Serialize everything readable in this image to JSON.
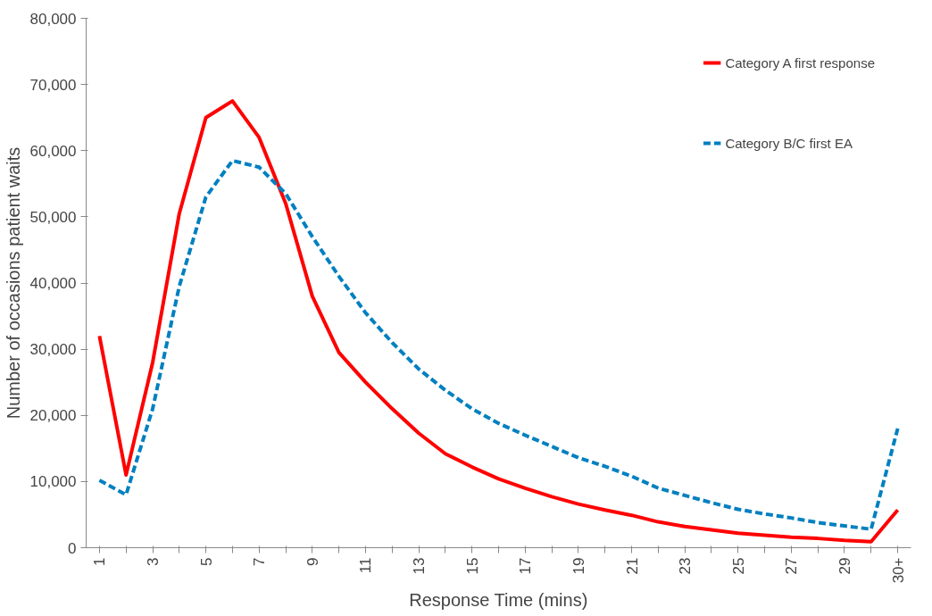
{
  "chart_data": {
    "type": "line",
    "xlabel": "Response Time (mins)",
    "ylabel": "Number of occasions patient waits",
    "categories": [
      "1",
      null,
      "3",
      null,
      "5",
      null,
      "7",
      null,
      "9",
      null,
      "11",
      null,
      "13",
      null,
      "15",
      null,
      "17",
      null,
      "19",
      null,
      "21",
      null,
      "23",
      null,
      "25",
      null,
      "27",
      null,
      "29",
      null,
      "30+"
    ],
    "series": [
      {
        "name": "Category A first response",
        "color": "#ff0000",
        "line_style": "solid",
        "values": [
          32000,
          11000,
          28000,
          50500,
          65000,
          67500,
          62000,
          52000,
          38000,
          29500,
          25000,
          21000,
          17300,
          14200,
          12200,
          10400,
          9000,
          7700,
          6600,
          5700,
          4900,
          3900,
          3200,
          2700,
          2200,
          1900,
          1600,
          1400,
          1100,
          900,
          5700
        ]
      },
      {
        "name": "Category B/C first EA",
        "color": "#0080c0",
        "line_style": "dashed",
        "values": [
          10200,
          8000,
          21000,
          39500,
          53000,
          58500,
          57500,
          53500,
          47000,
          41000,
          35500,
          31000,
          27000,
          23800,
          21000,
          18800,
          17000,
          15300,
          13600,
          12300,
          10800,
          9000,
          7900,
          6800,
          5800,
          5100,
          4500,
          3800,
          3300,
          2800,
          18000
        ]
      }
    ],
    "ylim": [
      0,
      80000
    ],
    "yticks": [
      {
        "value": 0,
        "label": "0"
      },
      {
        "value": 10000,
        "label": "10,000"
      },
      {
        "value": 20000,
        "label": "20,000"
      },
      {
        "value": 30000,
        "label": "30,000"
      },
      {
        "value": 40000,
        "label": "40,000"
      },
      {
        "value": 50000,
        "label": "50,000"
      },
      {
        "value": 60000,
        "label": "60,000"
      },
      {
        "value": 70000,
        "label": "70,000"
      },
      {
        "value": 80000,
        "label": "80,000"
      }
    ],
    "grid": false,
    "legend": "top right",
    "marker": "none"
  }
}
